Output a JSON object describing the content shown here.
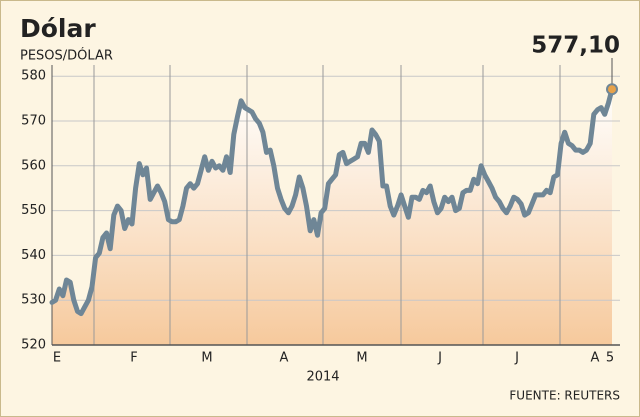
{
  "chart_data": {
    "type": "line",
    "title": "Dólar",
    "subtitle": "PESOS/DÓLAR",
    "x_labels": [
      "E",
      "F",
      "M",
      "A",
      "M",
      "J",
      "J",
      "A"
    ],
    "end_label": "5",
    "x_axis_label": "2014",
    "source": "FUENTE: REUTERS",
    "ylim": [
      520,
      582.5
    ],
    "yticks": [
      520,
      530,
      540,
      550,
      560,
      570,
      580
    ],
    "grid": true,
    "color": "#6f8696",
    "area_color": "#f6c99c",
    "highlight_color": "#e07b1f",
    "last_value": 577.1,
    "last_value_label": "577,10",
    "values": [
      529.5,
      530,
      532.5,
      531,
      534.5,
      534,
      530,
      527.5,
      527,
      528.5,
      530,
      533,
      539.5,
      540.5,
      544,
      545,
      541.5,
      549,
      551,
      550,
      546,
      548,
      547,
      555,
      560.5,
      558,
      559.5,
      552.5,
      554,
      555.5,
      554,
      552,
      548,
      547.5,
      547.5,
      548,
      551,
      555,
      556,
      555,
      556,
      559,
      562,
      559,
      561,
      559.5,
      560,
      559,
      562,
      558.5,
      567,
      571,
      574.5,
      573,
      572.5,
      572,
      570.5,
      569.5,
      567.5,
      563,
      563.5,
      560,
      555,
      552.5,
      550.5,
      549.5,
      551,
      553.5,
      557.5,
      555,
      551,
      545.5,
      548,
      544.5,
      549.5,
      550.5,
      556,
      557,
      558,
      562.5,
      563,
      560.5,
      561,
      561.5,
      562,
      565,
      565,
      563,
      568,
      567,
      565.5,
      555.5,
      555.5,
      551,
      549,
      551,
      553.5,
      551,
      548.5,
      553,
      553,
      552.5,
      554.5,
      554,
      555.5,
      552,
      549.5,
      550.5,
      553,
      552,
      553,
      550,
      550.5,
      554,
      554.5,
      554.5,
      557,
      556,
      560,
      558,
      556.5,
      555,
      553,
      552,
      550.5,
      549.5,
      551,
      553,
      552.5,
      551.5,
      549,
      549.5,
      551.5,
      553.5,
      553.5,
      553.5,
      554.5,
      554,
      557.5,
      558,
      565,
      567.5,
      565,
      564.5,
      563.5,
      563.5,
      563,
      563.5,
      565,
      571.5,
      572.5,
      573,
      571.5,
      574,
      577.1
    ]
  }
}
